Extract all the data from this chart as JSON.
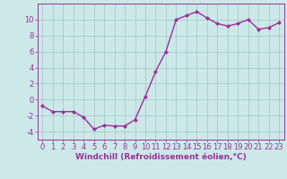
{
  "x": [
    0,
    1,
    2,
    3,
    4,
    5,
    6,
    7,
    8,
    9,
    10,
    11,
    12,
    13,
    14,
    15,
    16,
    17,
    18,
    19,
    20,
    21,
    22,
    23
  ],
  "y": [
    -0.8,
    -1.5,
    -1.5,
    -1.5,
    -2.2,
    -3.7,
    -3.2,
    -3.3,
    -3.3,
    -2.5,
    0.4,
    3.5,
    6.0,
    10.0,
    10.5,
    11.0,
    10.2,
    9.5,
    9.2,
    9.5,
    10.0,
    8.8,
    9.0,
    9.6
  ],
  "xlim": [
    -0.5,
    23.5
  ],
  "ylim": [
    -5,
    12
  ],
  "yticks": [
    -4,
    -2,
    0,
    2,
    4,
    6,
    8,
    10
  ],
  "xticks": [
    0,
    1,
    2,
    3,
    4,
    5,
    6,
    7,
    8,
    9,
    10,
    11,
    12,
    13,
    14,
    15,
    16,
    17,
    18,
    19,
    20,
    21,
    22,
    23
  ],
  "line_color": "#993399",
  "marker": "D",
  "marker_size": 2,
  "line_width": 1.0,
  "background_color": "#cce8e8",
  "grid_color": "#aacccc",
  "xlabel": "Windchill (Refroidissement éolien,°C)",
  "xlabel_fontsize": 6.5,
  "tick_fontsize": 6,
  "ytick_labels": [
    "-4",
    "-2",
    "0",
    "2",
    "4",
    "6",
    "8",
    "10"
  ]
}
